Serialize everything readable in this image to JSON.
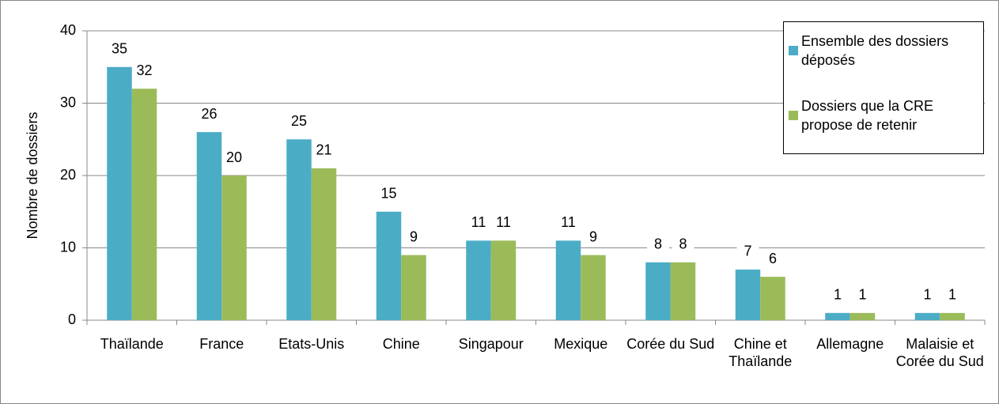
{
  "chart_data": {
    "type": "bar",
    "y_label": "Nombre de dossiers",
    "categories": [
      "Thaïlande",
      "France",
      "Etats-Unis",
      "Chine",
      "Singapour",
      "Mexique",
      "Corée du Sud",
      "Chine et Thaïlande",
      "Allemagne",
      "Malaisie et Corée du Sud"
    ],
    "series": [
      {
        "name": "Ensemble des dossiers déposés",
        "color": "#4bacc6",
        "values": [
          35,
          26,
          25,
          15,
          11,
          11,
          8,
          7,
          1,
          1
        ]
      },
      {
        "name": "Dossiers que la CRE propose de retenir",
        "color": "#9bbb59",
        "values": [
          32,
          20,
          21,
          9,
          11,
          9,
          8,
          6,
          1,
          1
        ]
      }
    ],
    "ylim": [
      0,
      40
    ],
    "yticks": [
      0,
      10,
      20,
      30,
      40
    ],
    "grid": true,
    "legend": "top-right"
  }
}
